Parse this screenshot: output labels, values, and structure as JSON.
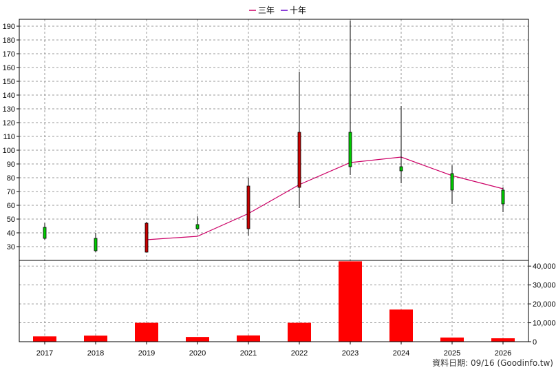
{
  "chart_data": {
    "type": "candlestick",
    "categories": [
      "2017",
      "2018",
      "2019",
      "2020",
      "2021",
      "2022",
      "2023",
      "2024",
      "2025",
      "2026"
    ],
    "price": {
      "ylim": [
        20,
        195
      ],
      "yticks": [
        30,
        40,
        50,
        60,
        70,
        80,
        90,
        100,
        110,
        120,
        130,
        140,
        150,
        160,
        170,
        180,
        190
      ],
      "candles": [
        {
          "open": 36,
          "close": 44,
          "high": 47,
          "low": 35
        },
        {
          "open": 27,
          "close": 36,
          "high": 40,
          "low": 26
        },
        {
          "open": 47,
          "close": 26,
          "high": 48,
          "low": 26
        },
        {
          "open": 43,
          "close": 46,
          "high": 52,
          "low": 42
        },
        {
          "open": 74,
          "close": 43,
          "high": 80,
          "low": 38
        },
        {
          "open": 113,
          "close": 73,
          "high": 157,
          "low": 58
        },
        {
          "open": 88,
          "close": 113,
          "high": 194,
          "low": 82
        },
        {
          "open": 85,
          "close": 88,
          "high": 132,
          "low": 76
        },
        {
          "open": 71,
          "close": 83,
          "high": 89,
          "low": 61
        },
        {
          "open": 61,
          "close": 71,
          "high": 73,
          "low": 55
        }
      ]
    },
    "series": [
      {
        "name": "三年",
        "color": "#cc0066",
        "values": [
          null,
          null,
          35,
          37.5,
          54,
          75,
          91,
          95,
          81.5,
          72
        ]
      },
      {
        "name": "十年",
        "color": "#6600cc",
        "values": [
          null,
          null,
          null,
          null,
          null,
          null,
          null,
          null,
          null,
          null
        ]
      }
    ],
    "volume": {
      "ylim": [
        0,
        43000
      ],
      "yticks": [
        0,
        10000,
        20000,
        30000,
        40000
      ],
      "ytick_labels": [
        "0",
        "10,000",
        "20,000",
        "30,000",
        "40,000"
      ],
      "values": [
        2800,
        3200,
        10000,
        2500,
        3300,
        10000,
        42500,
        17000,
        2200,
        1800
      ]
    },
    "colors": {
      "up": "#00cc00",
      "down": "#cc0000",
      "volume": "#ff0000"
    },
    "grid": true,
    "legend_position": "top-center"
  },
  "legend": {
    "three_year": "三年",
    "ten_year": "十年"
  },
  "source": "資料日期: 09/16 (Goodinfo.tw)"
}
